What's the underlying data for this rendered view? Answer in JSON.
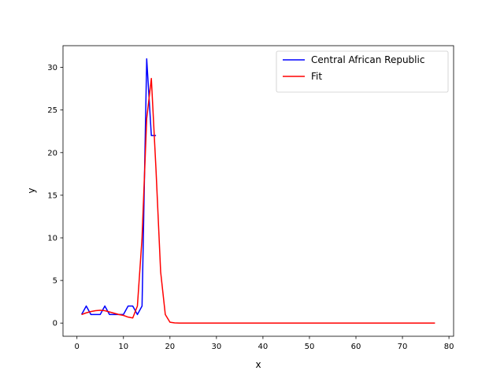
{
  "chart_data": {
    "type": "line",
    "xlabel": "x",
    "ylabel": "y",
    "xlim": [
      -3,
      81
    ],
    "ylim": [
      -1.55,
      32.55
    ],
    "xticks": [
      0,
      10,
      20,
      30,
      40,
      50,
      60,
      70,
      80
    ],
    "yticks": [
      0,
      5,
      10,
      15,
      20,
      25,
      30
    ],
    "grid": false,
    "legend_position": "top-right",
    "series": [
      {
        "name": "Central African Republic",
        "color": "#0000ff",
        "x": [
          1,
          2,
          3,
          4,
          5,
          6,
          7,
          8,
          9,
          10,
          11,
          12,
          13,
          14,
          15,
          16,
          17
        ],
        "y": [
          1,
          2,
          1,
          1,
          1,
          2,
          1,
          1,
          1,
          1,
          2,
          2,
          1,
          2,
          31,
          22,
          22
        ]
      },
      {
        "name": "Fit",
        "color": "#ff0000",
        "x": [
          1,
          2,
          3,
          4,
          5,
          6,
          7,
          8,
          9,
          10,
          11,
          12,
          13,
          14,
          15,
          16,
          17,
          18,
          19,
          20,
          21,
          22,
          23,
          24,
          25,
          26,
          27,
          28,
          29,
          30,
          31,
          32,
          33,
          34,
          35,
          36,
          37,
          38,
          39,
          40,
          41,
          42,
          43,
          44,
          45,
          46,
          47,
          48,
          49,
          50,
          51,
          52,
          53,
          54,
          55,
          56,
          57,
          58,
          59,
          60,
          61,
          62,
          63,
          64,
          65,
          66,
          67,
          68,
          69,
          70,
          71,
          72,
          73,
          74,
          75,
          76,
          77
        ],
        "y": [
          1.0,
          1.2,
          1.35,
          1.45,
          1.5,
          1.45,
          1.3,
          1.15,
          1.0,
          0.9,
          0.7,
          0.6,
          2.0,
          10.0,
          24.0,
          28.7,
          18.0,
          6.0,
          1.0,
          0.1,
          0.02,
          0,
          0,
          0,
          0,
          0,
          0,
          0,
          0,
          0,
          0,
          0,
          0,
          0,
          0,
          0,
          0,
          0,
          0,
          0,
          0,
          0,
          0,
          0,
          0,
          0,
          0,
          0,
          0,
          0,
          0,
          0,
          0,
          0,
          0,
          0,
          0,
          0,
          0,
          0,
          0,
          0,
          0,
          0,
          0,
          0,
          0,
          0,
          0,
          0,
          0,
          0,
          0,
          0,
          0,
          0,
          0
        ]
      }
    ]
  }
}
